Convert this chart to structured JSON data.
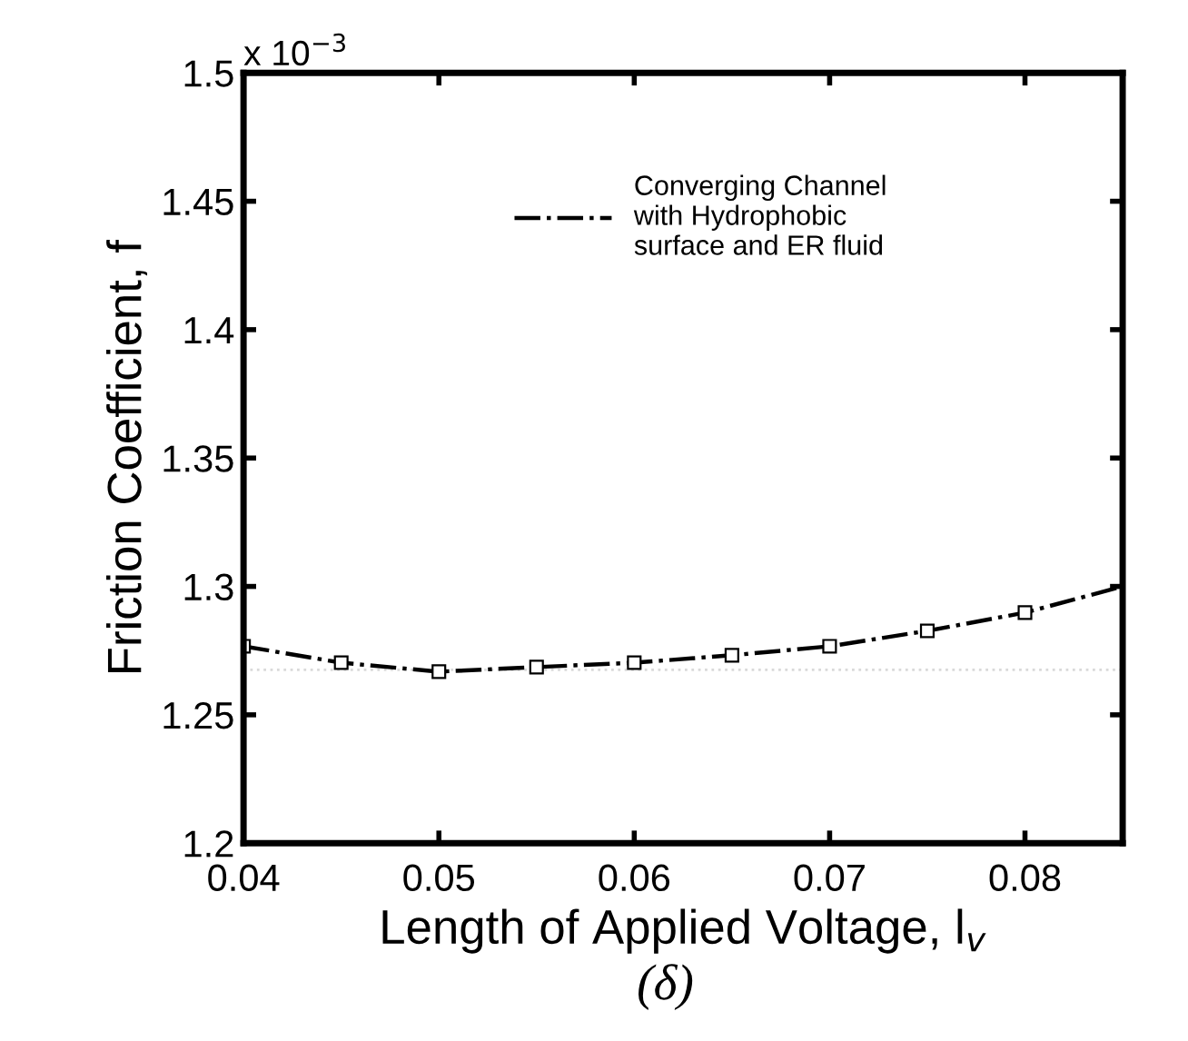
{
  "chart_data": {
    "type": "line",
    "xlabel": "Length of Applied Voltage, l$_{v}$",
    "ylabel": "Friction Coefficient, f",
    "x": [
      0.04,
      0.045,
      0.05,
      0.055,
      0.06,
      0.065,
      0.07,
      0.075,
      0.08,
      0.085
    ],
    "series": [
      {
        "name": "Converging Channel\nwith Hydrophobic\nsurface and ER fluid",
        "color": "#000000",
        "marker": [
          "square",
          "square",
          "square",
          "square",
          "square",
          "square",
          "square",
          "square",
          "square",
          "none"
        ],
        "values": [
          1.2767,
          1.2703,
          1.2668,
          1.2686,
          1.2703,
          1.2732,
          1.2767,
          1.2827,
          1.2898,
          1.3
        ]
      }
    ],
    "xlim": [
      0.04,
      0.085
    ],
    "xticks": [
      0.04,
      0.05,
      0.06,
      0.07,
      0.08
    ],
    "ylim": [
      1.2,
      1.5
    ],
    "yticks": [
      1.2,
      1.25,
      1.3,
      1.35,
      1.4,
      1.45,
      1.5
    ],
    "line_style": "dashdot",
    "grid": false,
    "legend": "top",
    "ref_lines": [
      {
        "axis": "y",
        "value": 1.2675,
        "color": "#d9d9d9",
        "line_style": "dotted"
      }
    ],
    "annotations": [
      "x 10$^{−3}$",
      "(δ)"
    ]
  }
}
